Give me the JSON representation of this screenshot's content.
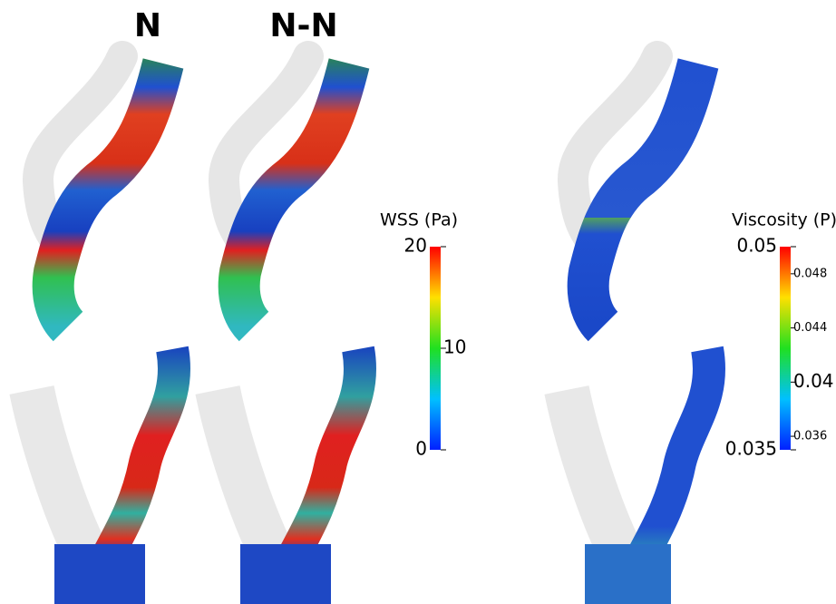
{
  "titles": [
    "N",
    "N-N"
  ],
  "colorbars": [
    {
      "title": "WSS (Pa)",
      "major": [
        0,
        10,
        20
      ],
      "minor": []
    },
    {
      "title": "Viscosity (P)",
      "major": [
        0.035,
        0.04,
        0.05
      ],
      "minor": [
        0.036,
        0.044,
        0.048
      ]
    }
  ]
}
